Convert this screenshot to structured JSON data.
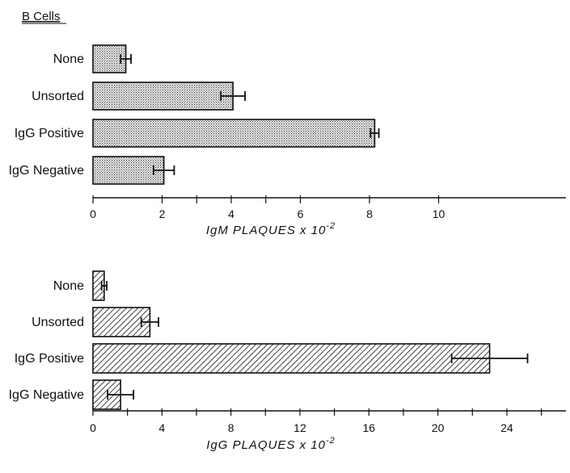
{
  "header": {
    "title": "B Cells"
  },
  "chart_data": [
    {
      "type": "bar",
      "orientation": "horizontal",
      "title": "B Cells",
      "categories": [
        "None",
        "Unsorted",
        "IgG Positive",
        "IgG Negative"
      ],
      "values": [
        0.95,
        4.05,
        8.15,
        2.05
      ],
      "errors": [
        0.15,
        0.35,
        0.12,
        0.3
      ],
      "xlabel": "IgM PLAQUES x 10",
      "xlabel_exp": "-2",
      "ylabel": "",
      "xlim": [
        0,
        14
      ],
      "xticks_labeled": [
        "0",
        "2",
        "4",
        "6",
        "8",
        "10"
      ],
      "xticks_labeled_values": [
        0,
        2,
        4,
        6,
        8,
        10
      ],
      "fill": "stippled",
      "grid": false
    },
    {
      "type": "bar",
      "orientation": "horizontal",
      "categories": [
        "None",
        "Unsorted",
        "IgG Positive",
        "IgG Negative"
      ],
      "values": [
        0.65,
        3.3,
        23.0,
        1.6
      ],
      "errors": [
        0.15,
        0.5,
        2.2,
        0.75
      ],
      "xlabel": "IgG PLAQUES x 10",
      "xlabel_exp": "-2",
      "ylabel": "",
      "xlim": [
        0,
        28
      ],
      "xticks_labeled": [
        "0",
        "4",
        "8",
        "12",
        "16",
        "20",
        "24"
      ],
      "xticks_labeled_values": [
        0,
        4,
        8,
        12,
        16,
        20,
        24
      ],
      "fill": "hatched",
      "grid": false
    }
  ]
}
